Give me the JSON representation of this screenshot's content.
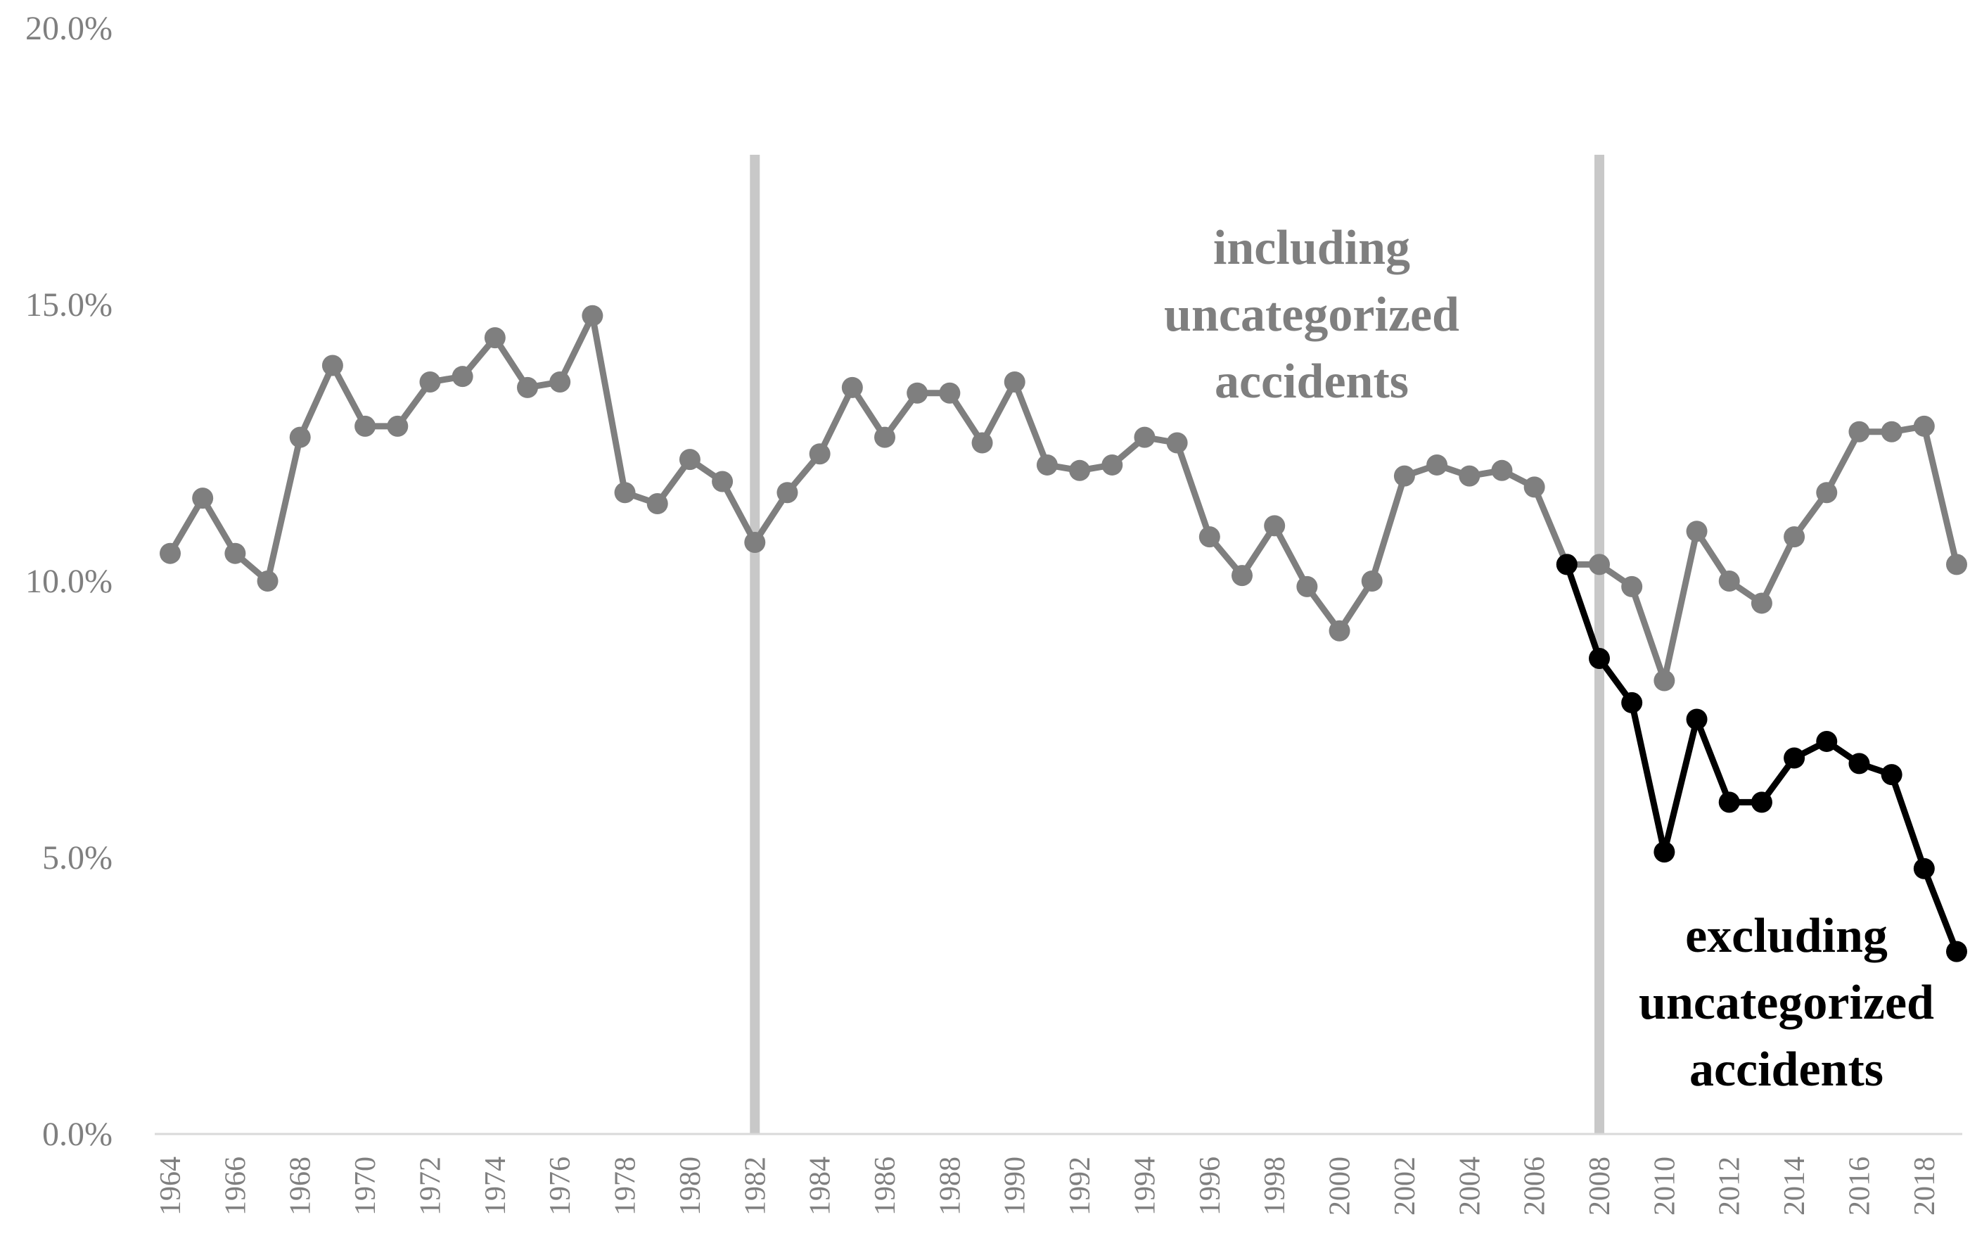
{
  "chart_data": {
    "type": "line",
    "ylim": [
      0,
      20
    ],
    "y_ticks": [
      "0.0%",
      "5.0%",
      "10.0%",
      "15.0%",
      "20.0%"
    ],
    "x_start": 1964,
    "x_end": 2019,
    "x_tick_labels": [
      "1964",
      "1966",
      "1968",
      "1970",
      "1972",
      "1974",
      "1976",
      "1978",
      "1980",
      "1982",
      "1984",
      "1986",
      "1988",
      "1990",
      "1992",
      "1994",
      "1996",
      "1998",
      "2000",
      "2002",
      "2004",
      "2006",
      "2008",
      "2010",
      "2012",
      "2014",
      "2016",
      "2018"
    ],
    "vertical_lines": [
      1982,
      2008
    ],
    "grid": false,
    "series": [
      {
        "color": "#7f7f7f",
        "x": [
          1964,
          1965,
          1966,
          1967,
          1968,
          1969,
          1970,
          1971,
          1972,
          1973,
          1974,
          1975,
          1976,
          1977,
          1978,
          1979,
          1980,
          1981,
          1982,
          1983,
          1984,
          1985,
          1986,
          1987,
          1988,
          1989,
          1990,
          1991,
          1992,
          1993,
          1994,
          1995,
          1996,
          1997,
          1998,
          1999,
          2000,
          2001,
          2002,
          2003,
          2004,
          2005,
          2006,
          2007,
          2008,
          2009,
          2010,
          2011,
          2012,
          2013,
          2014,
          2015,
          2016,
          2017,
          2018,
          2019
        ],
        "values": [
          10.5,
          11.5,
          10.5,
          10.0,
          12.6,
          13.9,
          12.8,
          12.8,
          13.6,
          13.7,
          14.4,
          13.5,
          13.6,
          14.8,
          11.6,
          11.4,
          12.2,
          11.8,
          10.7,
          11.6,
          12.3,
          13.5,
          12.6,
          13.4,
          13.4,
          12.5,
          13.6,
          12.1,
          12.0,
          12.1,
          12.6,
          12.5,
          10.8,
          10.1,
          11.0,
          9.9,
          9.1,
          10.0,
          11.9,
          12.1,
          11.9,
          12.0,
          11.7,
          10.3,
          10.3,
          9.9,
          8.2,
          10.9,
          10.0,
          9.6,
          10.8,
          11.6,
          12.7,
          12.7,
          12.8,
          10.3
        ]
      },
      {
        "color": "#000000",
        "x": [
          2007,
          2008,
          2009,
          2010,
          2011,
          2012,
          2013,
          2014,
          2015,
          2016,
          2017,
          2018,
          2019
        ],
        "values": [
          10.3,
          8.6,
          7.8,
          5.1,
          7.5,
          6.0,
          6.0,
          6.8,
          7.1,
          6.7,
          6.5,
          4.8,
          3.3
        ]
      }
    ],
    "annotations": [
      {
        "lines": [
          "including",
          "uncategorized",
          "accidents"
        ],
        "color": "#7f7f7f"
      },
      {
        "lines": [
          "excluding",
          "uncategorized",
          "accidents"
        ],
        "color": "#000000"
      }
    ]
  }
}
